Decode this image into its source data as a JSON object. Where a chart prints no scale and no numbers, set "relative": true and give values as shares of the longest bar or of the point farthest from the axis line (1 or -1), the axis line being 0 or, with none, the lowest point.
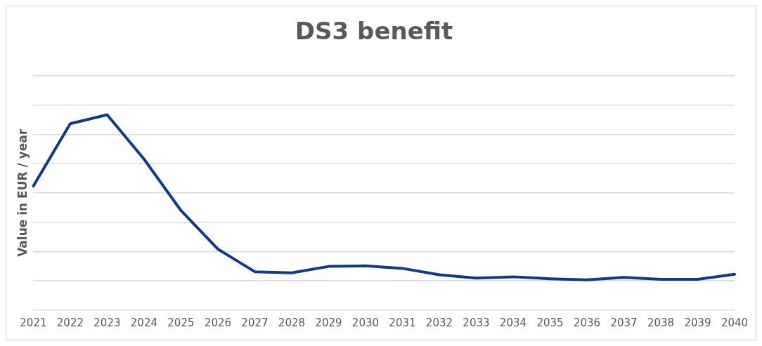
{
  "chart_data": {
    "type": "line",
    "title": "DS3 benefit",
    "ylabel": "Value in EUR / year",
    "categories": [
      "2021",
      "2022",
      "2023",
      "2024",
      "2025",
      "2026",
      "2027",
      "2028",
      "2029",
      "2030",
      "2031",
      "2032",
      "2033",
      "2034",
      "2035",
      "2036",
      "2037",
      "2038",
      "2039",
      "2040"
    ],
    "series": [
      {
        "color": "#0e3a8a",
        "values": [
          0.635,
          0.954,
          1,
          0.773,
          0.51,
          0.313,
          0.197,
          0.191,
          0.224,
          0.227,
          0.214,
          0.181,
          0.164,
          0.171,
          0.161,
          0.155,
          0.168,
          0.158,
          0.158,
          0.184
        ]
      }
    ],
    "relative": true,
    "grid": "y",
    "legend": false,
    "marker": "none",
    "line_style": "solid"
  }
}
